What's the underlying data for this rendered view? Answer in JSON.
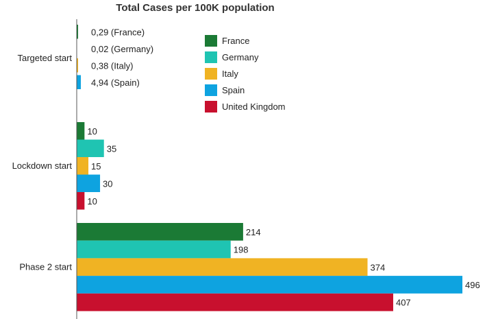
{
  "chart_data": {
    "type": "bar",
    "orientation": "horizontal",
    "title": "Total Cases per 100K population",
    "xlabel": "",
    "ylabel": "",
    "xlim": [
      0,
      520
    ],
    "grid": false,
    "legend_position": "top-right",
    "categories": [
      "Targeted start",
      "Lockdown start",
      "Phase 2 start"
    ],
    "series": [
      {
        "name": "France",
        "color": "#1b7a35",
        "values": [
          0.29,
          10,
          214
        ],
        "labels": [
          "0,29 (France)",
          "10",
          "214"
        ]
      },
      {
        "name": "Germany",
        "color": "#1fc4b2",
        "values": [
          0.02,
          35,
          198
        ],
        "labels": [
          "0,02 (Germany)",
          "35",
          "198"
        ]
      },
      {
        "name": "Italy",
        "color": "#f0b323",
        "values": [
          0.38,
          15,
          374
        ],
        "labels": [
          "0,38 (Italy)",
          "15",
          "374"
        ]
      },
      {
        "name": "Spain",
        "color": "#0ea3e0",
        "values": [
          4.94,
          30,
          496
        ],
        "labels": [
          "4,94 (Spain)",
          "30",
          "496"
        ]
      },
      {
        "name": "United Kingdom",
        "color": "#c8102e",
        "values": [
          null,
          10,
          407
        ],
        "labels": [
          null,
          "10",
          "407"
        ]
      }
    ]
  }
}
